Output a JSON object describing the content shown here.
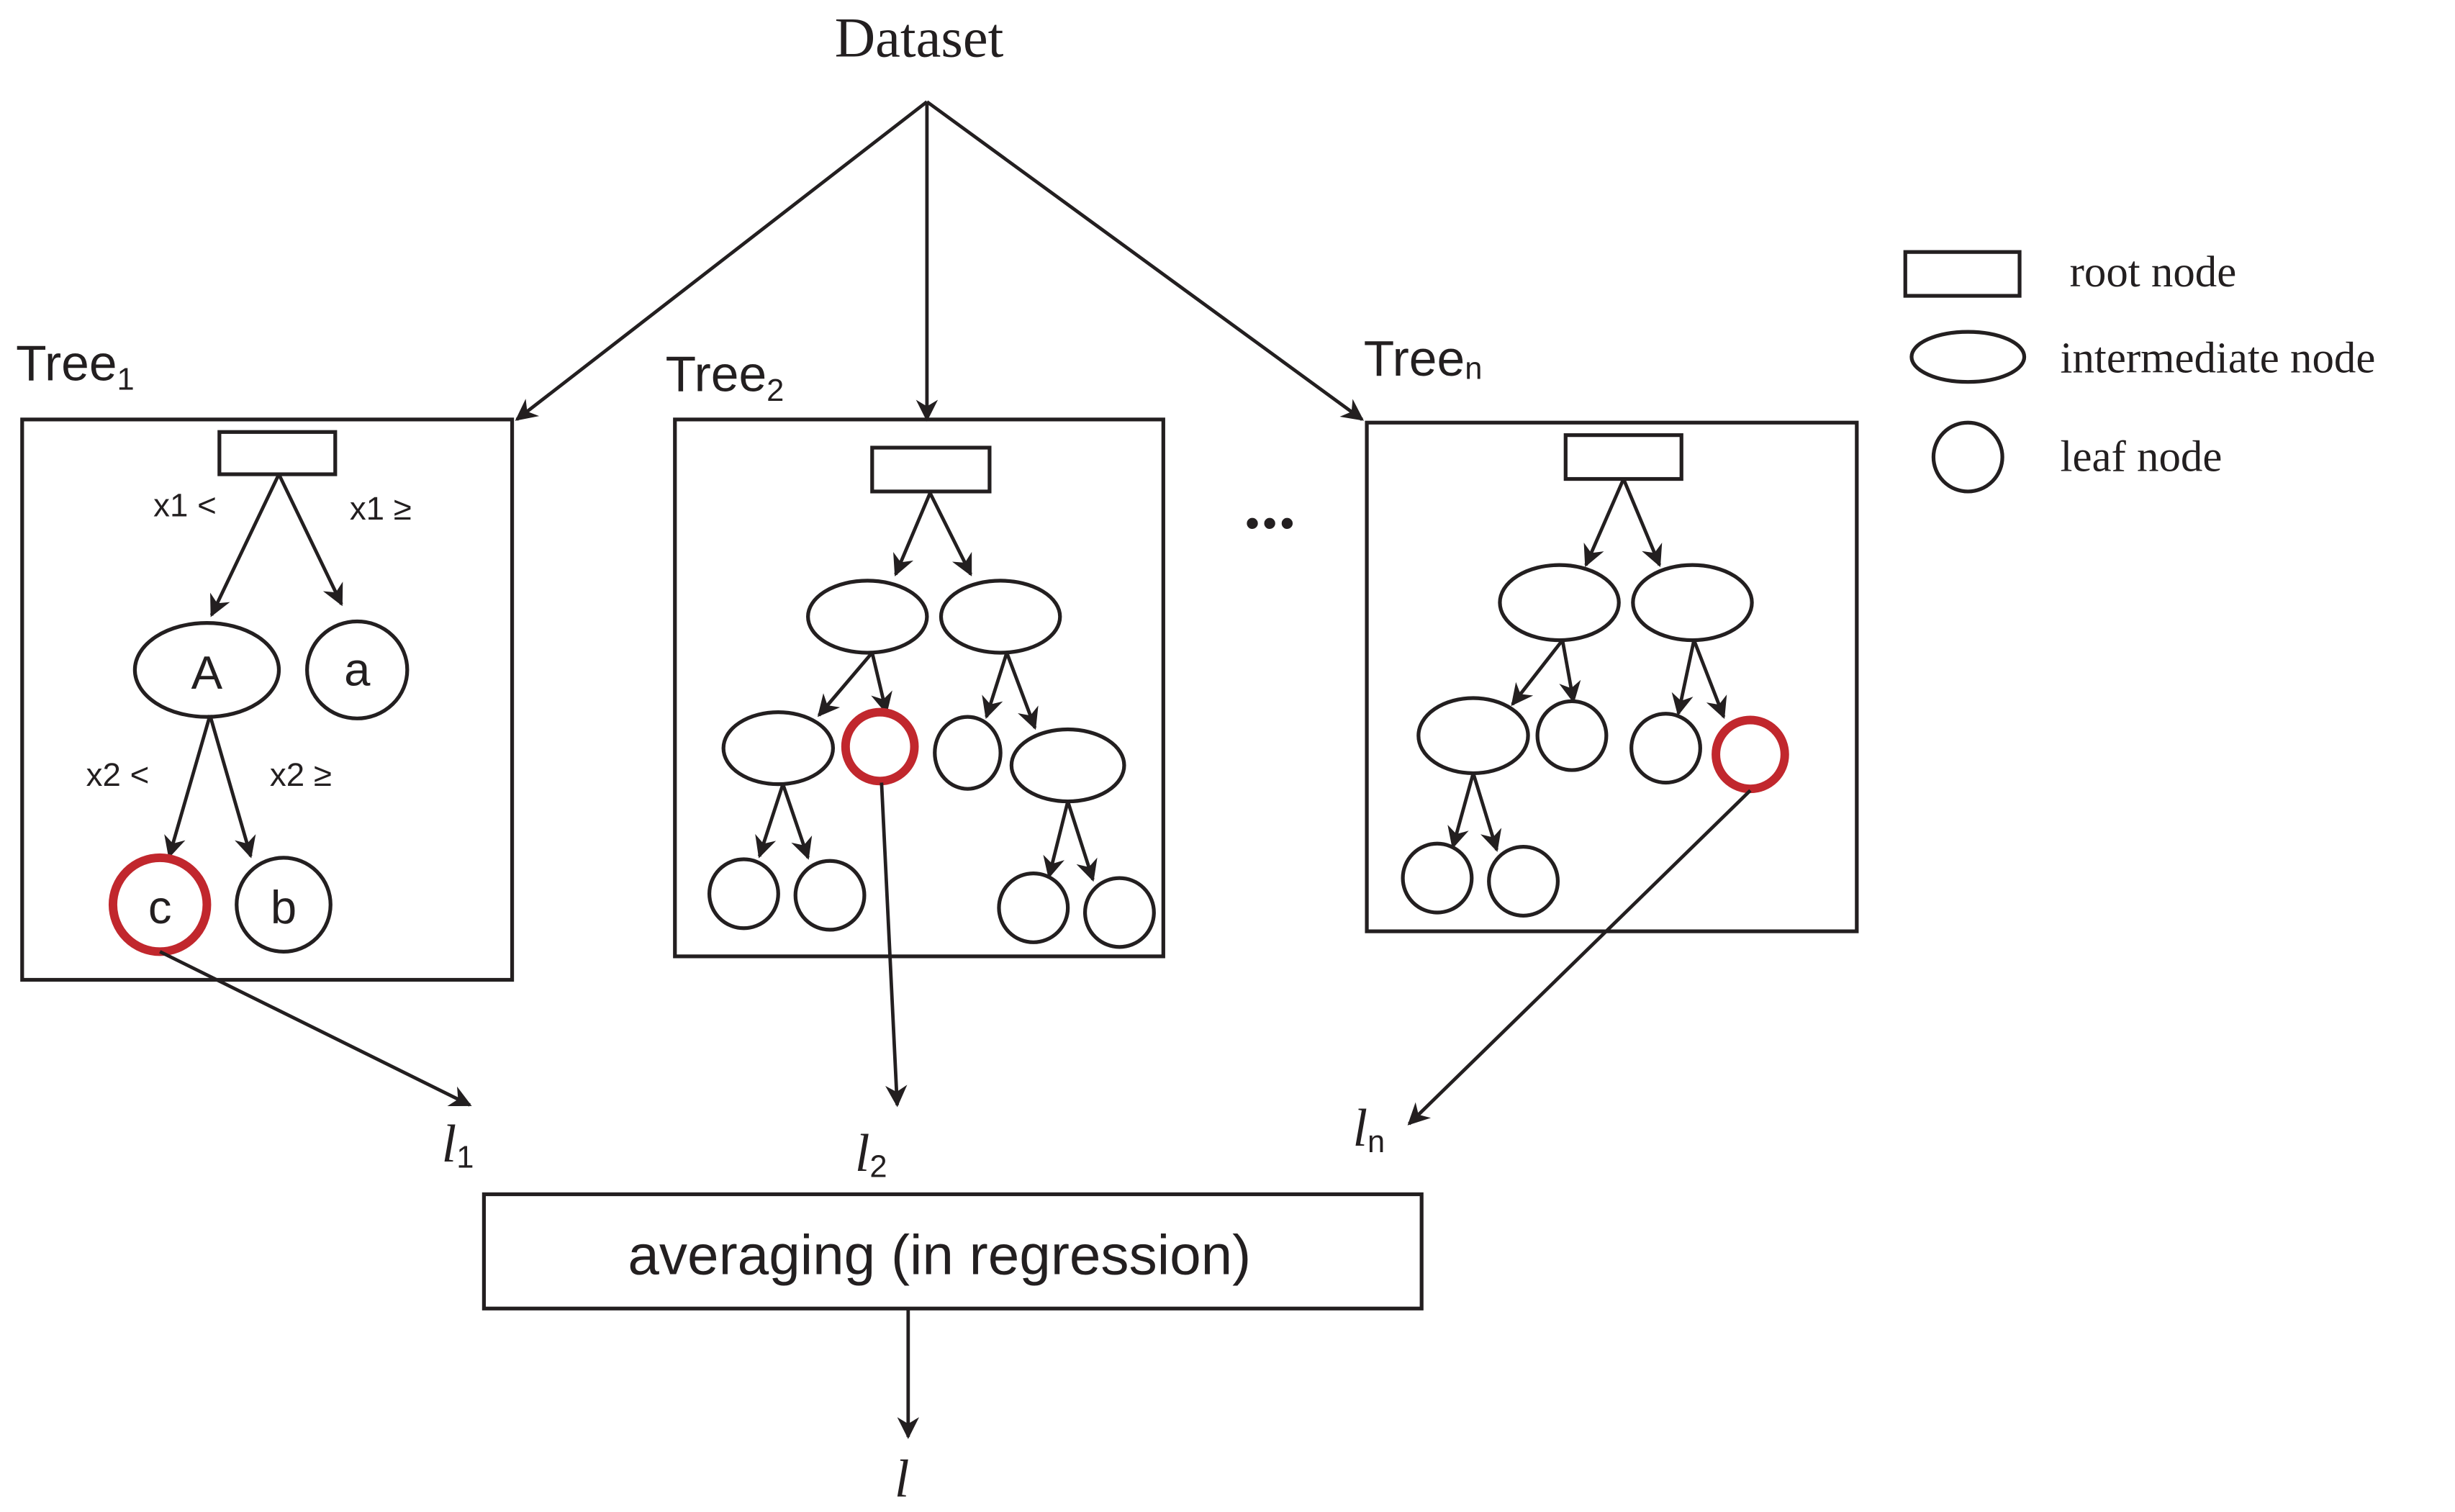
{
  "title": "Dataset",
  "trees": [
    {
      "label": "Tree",
      "sub": "1",
      "edge_labels": [
        "x1 <",
        "x1 ≥",
        "x2 <",
        "x2 ≥"
      ],
      "node_labels": [
        "A",
        "a",
        "c",
        "b"
      ]
    },
    {
      "label": "Tree",
      "sub": "2"
    },
    {
      "label": "Tree",
      "sub": "n"
    }
  ],
  "ellipsis": "•••",
  "outputs": [
    {
      "symbol": "l",
      "sub": "1"
    },
    {
      "symbol": "l",
      "sub": "2"
    },
    {
      "symbol": "l",
      "sub": "n"
    }
  ],
  "aggregator": "averaging (in regression)",
  "final_output": "l",
  "legend": {
    "root": "root node",
    "intermediate": "intermediate node",
    "leaf": "leaf node"
  },
  "colors": {
    "highlight": "#c1272d",
    "stroke": "#231f20"
  }
}
